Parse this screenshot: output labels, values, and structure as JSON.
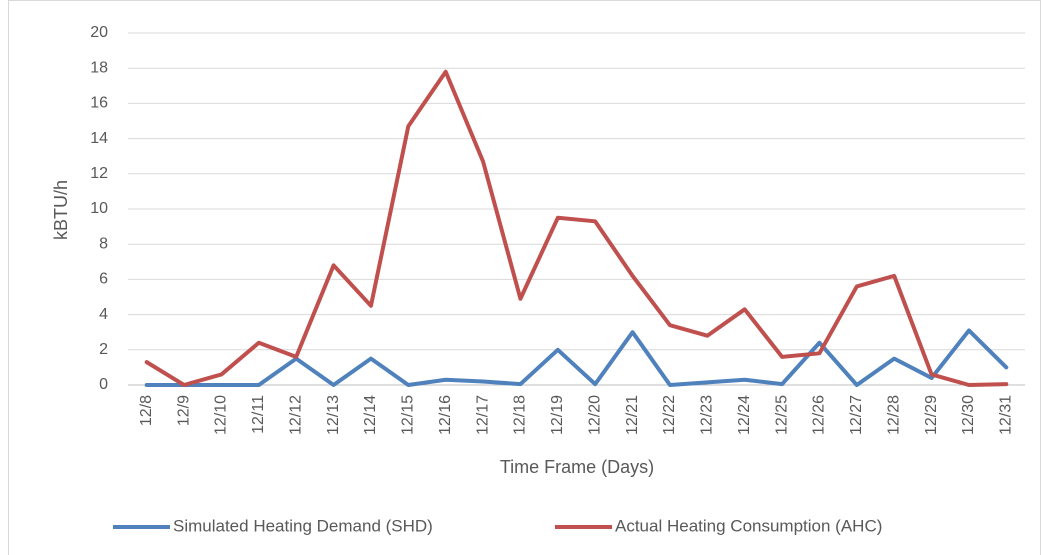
{
  "chart_data": {
    "type": "line",
    "x_label": "Time Frame (Days)",
    "y_label": "kBTU/h",
    "categories": [
      "12/8",
      "12/9",
      "12/10",
      "12/11",
      "12/12",
      "12/13",
      "12/14",
      "12/15",
      "12/16",
      "12/17",
      "12/18",
      "12/19",
      "12/20",
      "12/21",
      "12/22",
      "12/23",
      "12/24",
      "12/25",
      "12/26",
      "12/27",
      "12/28",
      "12/29",
      "12/30",
      "12/31"
    ],
    "series": [
      {
        "name": "Simulated Heating Demand (SHD)",
        "color": "#4f81bd",
        "values": [
          0,
          0,
          0,
          0,
          1.5,
          0,
          1.5,
          0,
          0.3,
          0.2,
          0.05,
          2.0,
          0.05,
          3.0,
          0,
          0.15,
          0.3,
          0.05,
          2.4,
          0,
          1.5,
          0.4,
          3.1,
          1.0
        ]
      },
      {
        "name": "Actual Heating Consumption (AHC)",
        "color": "#c0504d",
        "values": [
          1.3,
          0,
          0.6,
          2.4,
          1.6,
          6.8,
          4.5,
          14.7,
          17.8,
          12.7,
          4.9,
          9.5,
          9.3,
          6.2,
          3.4,
          2.8,
          4.3,
          1.6,
          1.8,
          5.6,
          6.2,
          0.6,
          0,
          0.05
        ]
      }
    ],
    "ylim": [
      0,
      20
    ],
    "yticks": [
      0,
      2,
      4,
      6,
      8,
      10,
      12,
      14,
      16,
      18,
      20
    ],
    "grid": true,
    "legend": "bottom"
  }
}
